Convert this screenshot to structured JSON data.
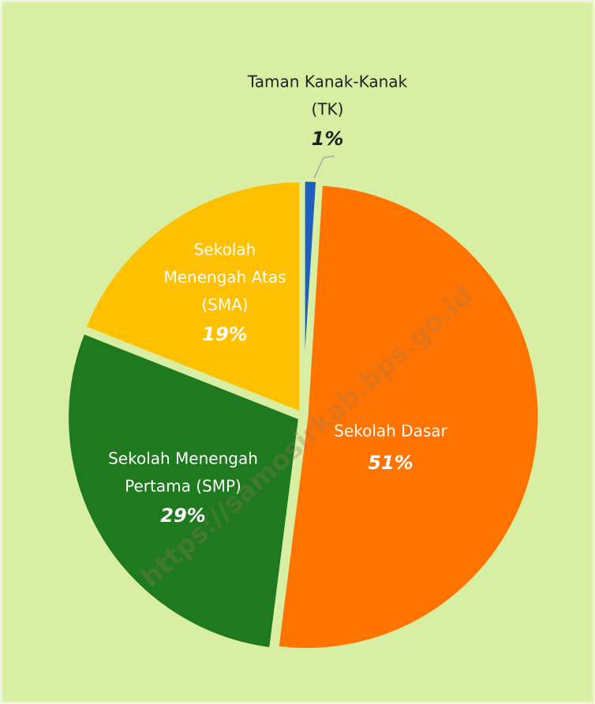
{
  "chart_data": {
    "type": "pie",
    "categories": [
      [
        "Taman Kanak-Kanak",
        "(TK)"
      ],
      [
        "Sekolah Dasar"
      ],
      [
        "Sekolah Menengah",
        "Pertama (SMP)"
      ],
      [
        "Sekolah",
        "Menengah Atas",
        "(SMA)"
      ]
    ],
    "values": [
      1,
      51,
      29,
      19
    ],
    "value_labels": [
      "1%",
      "51%",
      "29%",
      "19%"
    ],
    "colors": [
      "#1f5fc0",
      "#ff7300",
      "#1f7a1f",
      "#ffc000"
    ],
    "watermark": "https://samosirkab.bps.go.id"
  }
}
